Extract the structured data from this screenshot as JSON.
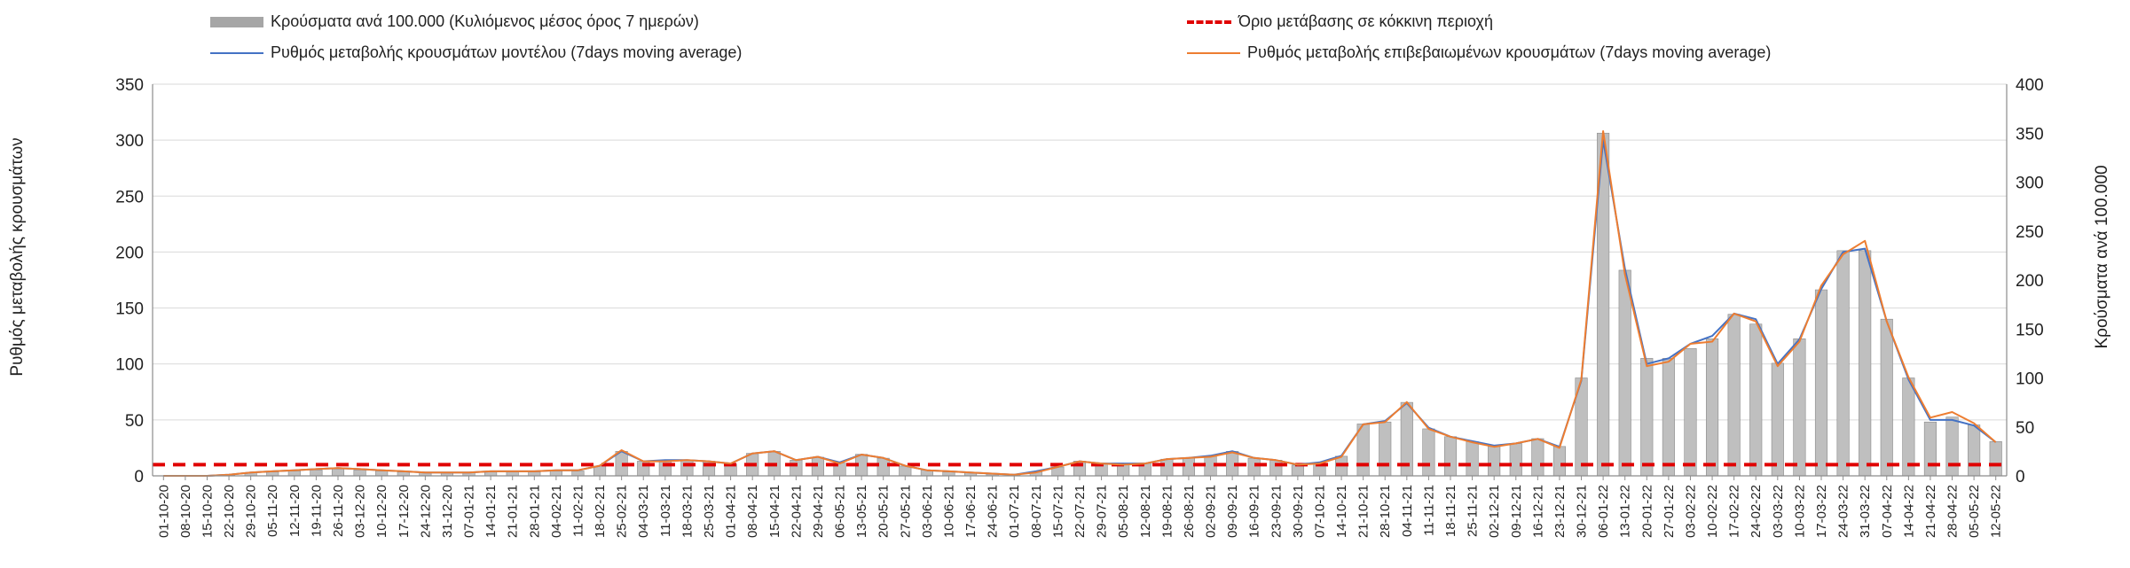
{
  "chart_data": {
    "type": "bar+line",
    "title": "",
    "legend": [
      {
        "key": "bars",
        "label": "Κρούσματα ανά 100.000 (Κυλιόμενος μέσος όρος 7 ημερών)"
      },
      {
        "key": "threshold",
        "label": "Όριο μετάβασης σε κόκκινη περιοχή"
      },
      {
        "key": "model",
        "label": "Ρυθμός μεταβολής κρουσμάτων μοντέλου (7days moving average)"
      },
      {
        "key": "confirmed",
        "label": "Ρυθμός μεταβολής επιβεβαιωμένων κρουσμάτων (7days moving average)"
      }
    ],
    "legend_position": "top",
    "ylabel_left": "Ρυθμός μεταβολής κρουσμάτων",
    "ylabel_right": "Κρούσματα ανά 100.000",
    "ylim_left": [
      0,
      350
    ],
    "yticks_left": [
      0,
      50,
      100,
      150,
      200,
      250,
      300,
      350
    ],
    "ylim_right": [
      0,
      400
    ],
    "yticks_right": [
      0,
      50,
      100,
      150,
      200,
      250,
      300,
      350,
      400
    ],
    "grid": true,
    "x_dates": [
      "01-10-20",
      "08-10-20",
      "15-10-20",
      "22-10-20",
      "29-10-20",
      "05-11-20",
      "12-11-20",
      "19-11-20",
      "26-11-20",
      "03-12-20",
      "10-12-20",
      "17-12-20",
      "24-12-20",
      "31-12-20",
      "07-01-21",
      "14-01-21",
      "21-01-21",
      "28-01-21",
      "04-02-21",
      "11-02-21",
      "18-02-21",
      "25-02-21",
      "04-03-21",
      "11-03-21",
      "18-03-21",
      "25-03-21",
      "01-04-21",
      "08-04-21",
      "15-04-21",
      "22-04-21",
      "29-04-21",
      "06-05-21",
      "13-05-21",
      "20-05-21",
      "27-05-21",
      "03-06-21",
      "10-06-21",
      "17-06-21",
      "24-06-21",
      "01-07-21",
      "08-07-21",
      "15-07-21",
      "22-07-21",
      "29-07-21",
      "05-08-21",
      "12-08-21",
      "19-08-21",
      "26-08-21",
      "02-09-21",
      "09-09-21",
      "16-09-21",
      "23-09-21",
      "30-09-21",
      "07-10-21",
      "14-10-21",
      "21-10-21",
      "28-10-21",
      "04-11-21",
      "11-11-21",
      "18-11-21",
      "25-11-21",
      "02-12-21",
      "09-12-21",
      "16-12-21",
      "23-12-21",
      "30-12-21",
      "06-01-22",
      "13-01-22",
      "20-01-22",
      "27-01-22",
      "03-02-22",
      "10-02-22",
      "17-02-22",
      "24-02-22",
      "03-03-22",
      "10-03-22",
      "17-03-22",
      "24-03-22",
      "31-03-22",
      "07-04-22",
      "14-04-22",
      "21-04-22",
      "28-04-22",
      "05-05-22",
      "12-05-22"
    ],
    "weekly_cases_per_100k": [
      0,
      0,
      0,
      1,
      3,
      4,
      5,
      6,
      7,
      6,
      5,
      4,
      3,
      3,
      3,
      4,
      4,
      4,
      5,
      5,
      10,
      25,
      15,
      15,
      16,
      15,
      12,
      23,
      25,
      16,
      19,
      13,
      22,
      18,
      10,
      6,
      4,
      3,
      2,
      1,
      4,
      9,
      15,
      13,
      12,
      13,
      17,
      18,
      20,
      25,
      18,
      16,
      11,
      13,
      20,
      53,
      55,
      75,
      48,
      40,
      35,
      30,
      33,
      38,
      30,
      100,
      350,
      210,
      120,
      120,
      130,
      140,
      165,
      155,
      115,
      140,
      190,
      230,
      230,
      160,
      100,
      55,
      60,
      52,
      35
    ],
    "threshold_value": 10,
    "model_rate": [
      0,
      0,
      0,
      1,
      3,
      4,
      5,
      6,
      7,
      6,
      5,
      4,
      3,
      3,
      3,
      4,
      4,
      4,
      5,
      5,
      9,
      22,
      13,
      14,
      14,
      13,
      11,
      20,
      22,
      14,
      17,
      12,
      19,
      16,
      9,
      5,
      4,
      3,
      2,
      1,
      4,
      8,
      13,
      11,
      11,
      11,
      15,
      16,
      18,
      22,
      16,
      14,
      10,
      12,
      18,
      46,
      49,
      65,
      43,
      35,
      31,
      27,
      29,
      33,
      26,
      85,
      300,
      185,
      100,
      105,
      118,
      125,
      145,
      140,
      100,
      122,
      167,
      200,
      203,
      138,
      86,
      50,
      50,
      45,
      30
    ],
    "confirmed_rate": [
      0,
      0,
      0,
      1,
      3,
      4,
      5,
      6,
      7,
      6,
      5,
      4,
      3,
      3,
      3,
      4,
      4,
      4,
      5,
      5,
      9,
      23,
      13,
      13,
      14,
      13,
      11,
      20,
      22,
      14,
      17,
      11,
      19,
      16,
      9,
      5,
      4,
      3,
      2,
      1,
      3,
      8,
      13,
      11,
      10,
      11,
      15,
      16,
      17,
      21,
      16,
      14,
      10,
      11,
      17,
      46,
      48,
      66,
      42,
      35,
      30,
      26,
      29,
      33,
      25,
      86,
      308,
      180,
      98,
      102,
      118,
      120,
      145,
      138,
      98,
      120,
      170,
      198,
      210,
      138,
      88,
      52,
      57,
      47,
      30
    ]
  }
}
